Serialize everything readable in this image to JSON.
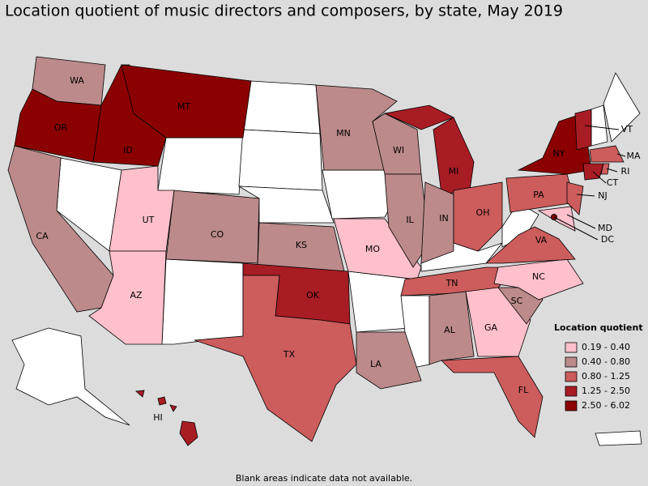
{
  "title": "Location quotient of music directors and composers, by state, May 2019",
  "note": "Blank areas indicate data not available.",
  "legend": {
    "title": "Location quotient",
    "items": [
      {
        "label": "0.19 - 0.40",
        "color": "#ffc0cb"
      },
      {
        "label": "0.40 - 0.80",
        "color": "#bc8a8a"
      },
      {
        "label": "0.80 - 1.25",
        "color": "#cd5c5c"
      },
      {
        "label": "1.25 - 2.50",
        "color": "#a81c24"
      },
      {
        "label": "2.50 - 6.02",
        "color": "#8b0000"
      }
    ]
  },
  "states": [
    {
      "label": "WA",
      "color": "#bc8a8a"
    },
    {
      "label": "OR",
      "color": "#8b0000"
    },
    {
      "label": "CA",
      "color": "#bc8a8a"
    },
    {
      "label": "ID",
      "color": "#8b0000"
    },
    {
      "label": "MT",
      "color": "#8b0000"
    },
    {
      "label": "UT",
      "color": "#ffc0cb"
    },
    {
      "label": "AZ",
      "color": "#ffc0cb"
    },
    {
      "label": "CO",
      "color": "#bc8a8a"
    },
    {
      "label": "KS",
      "color": "#bc8a8a"
    },
    {
      "label": "OK",
      "color": "#a81c24"
    },
    {
      "label": "TX",
      "color": "#cd5c5c"
    },
    {
      "label": "MN",
      "color": "#bc8a8a"
    },
    {
      "label": "MO",
      "color": "#ffc0cb"
    },
    {
      "label": "LA",
      "color": "#bc8a8a"
    },
    {
      "label": "WI",
      "color": "#bc8a8a"
    },
    {
      "label": "IL",
      "color": "#bc8a8a"
    },
    {
      "label": "MI",
      "color": "#a81c24"
    },
    {
      "label": "IN",
      "color": "#bc8a8a"
    },
    {
      "label": "OH",
      "color": "#cd5c5c"
    },
    {
      "label": "TN",
      "color": "#cd5c5c"
    },
    {
      "label": "AL",
      "color": "#bc8a8a"
    },
    {
      "label": "GA",
      "color": "#ffc0cb"
    },
    {
      "label": "FL",
      "color": "#cd5c5c"
    },
    {
      "label": "SC",
      "color": "#bc8a8a"
    },
    {
      "label": "NC",
      "color": "#ffc0cb"
    },
    {
      "label": "VA",
      "color": "#cd5c5c"
    },
    {
      "label": "PA",
      "color": "#cd5c5c"
    },
    {
      "label": "NY",
      "color": "#8b0000"
    },
    {
      "label": "NJ",
      "color": "#cd5c5c"
    },
    {
      "label": "MD",
      "color": "#ffc0cb"
    },
    {
      "label": "DC",
      "color": "#8b0000"
    },
    {
      "label": "VT",
      "color": "#a81c24"
    },
    {
      "label": "MA",
      "color": "#cd5c5c"
    },
    {
      "label": "CT",
      "color": "#a81c24"
    },
    {
      "label": "RI",
      "color": "#cd5c5c"
    },
    {
      "label": "HI",
      "color": "#a81c24"
    }
  ]
}
